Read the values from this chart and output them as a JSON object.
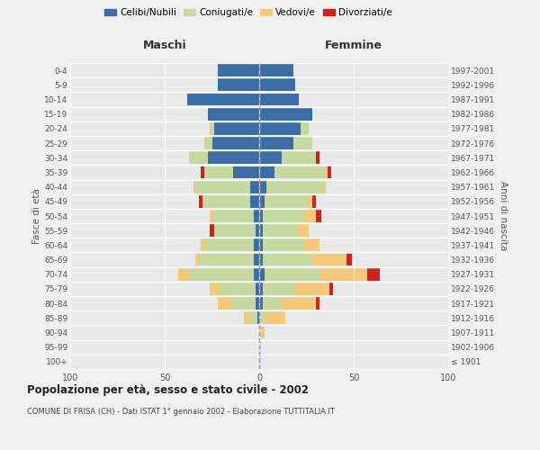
{
  "age_groups": [
    "100+",
    "95-99",
    "90-94",
    "85-89",
    "80-84",
    "75-79",
    "70-74",
    "65-69",
    "60-64",
    "55-59",
    "50-54",
    "45-49",
    "40-44",
    "35-39",
    "30-34",
    "25-29",
    "20-24",
    "15-19",
    "10-14",
    "5-9",
    "0-4"
  ],
  "birth_years": [
    "≤ 1901",
    "1902-1906",
    "1907-1911",
    "1912-1916",
    "1917-1921",
    "1922-1926",
    "1927-1931",
    "1932-1936",
    "1937-1941",
    "1942-1946",
    "1947-1951",
    "1952-1956",
    "1957-1961",
    "1962-1966",
    "1967-1971",
    "1972-1976",
    "1977-1981",
    "1982-1986",
    "1987-1991",
    "1992-1996",
    "1997-2001"
  ],
  "colors": {
    "celibi": "#3a6ea5",
    "coniugati": "#c5d9a0",
    "vedovi": "#f5c97a",
    "divorziati": "#cc2222"
  },
  "maschi": {
    "celibi": [
      0,
      0,
      0,
      1,
      2,
      2,
      3,
      3,
      3,
      2,
      3,
      5,
      5,
      14,
      27,
      25,
      24,
      27,
      38,
      22,
      22
    ],
    "coniugati": [
      0,
      0,
      0,
      4,
      13,
      19,
      34,
      29,
      26,
      21,
      21,
      25,
      29,
      15,
      10,
      3,
      1,
      0,
      0,
      0,
      0
    ],
    "vedovi": [
      0,
      0,
      0,
      3,
      7,
      5,
      6,
      2,
      2,
      1,
      2,
      0,
      1,
      0,
      0,
      1,
      1,
      0,
      0,
      0,
      0
    ],
    "divorziati": [
      0,
      0,
      0,
      0,
      0,
      0,
      0,
      0,
      0,
      2,
      0,
      2,
      0,
      2,
      0,
      0,
      0,
      0,
      0,
      0,
      0
    ]
  },
  "femmine": {
    "celibi": [
      0,
      0,
      0,
      0,
      2,
      2,
      3,
      2,
      2,
      2,
      2,
      3,
      4,
      8,
      12,
      18,
      22,
      28,
      21,
      19,
      18
    ],
    "coniugati": [
      0,
      0,
      0,
      4,
      10,
      17,
      29,
      26,
      22,
      18,
      22,
      22,
      30,
      27,
      18,
      10,
      4,
      0,
      0,
      0,
      0
    ],
    "vedovi": [
      1,
      1,
      3,
      10,
      18,
      18,
      25,
      18,
      8,
      6,
      6,
      3,
      1,
      1,
      0,
      0,
      0,
      0,
      0,
      0,
      0
    ],
    "divorziati": [
      0,
      0,
      0,
      0,
      2,
      2,
      7,
      3,
      0,
      0,
      3,
      2,
      0,
      2,
      2,
      0,
      0,
      0,
      0,
      0,
      0
    ]
  },
  "title": "Popolazione per età, sesso e stato civile - 2002",
  "subtitle": "COMUNE DI FRISA (CH) - Dati ISTAT 1° gennaio 2002 - Elaborazione TUTTITALIA.IT",
  "xlabel_left": "Maschi",
  "xlabel_right": "Femmine",
  "ylabel_left": "Fasce di età",
  "ylabel_right": "Anni di nascita",
  "xlim": 100,
  "legend_labels": [
    "Celibi/Nubili",
    "Coniugati/e",
    "Vedovi/e",
    "Divorziati/e"
  ],
  "background_color": "#f0f0f0",
  "plot_bg": "#e8e8e8"
}
